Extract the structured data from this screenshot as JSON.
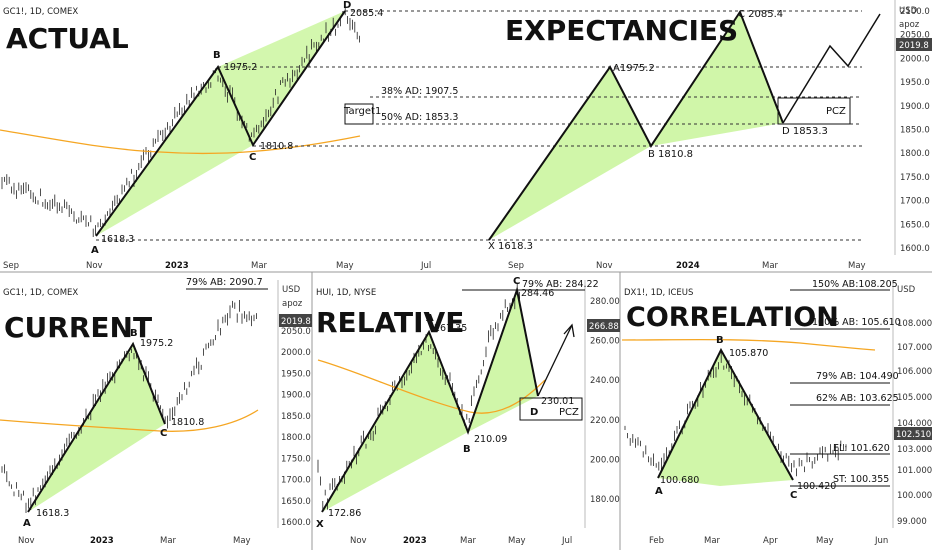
{
  "panels": {
    "top": {
      "symbol": "GC1!, 1D, COMEX",
      "title_left": "ACTUAL",
      "title_right": "EXPECTANCIES",
      "currency": "USD",
      "user": "apoz",
      "price_tag": "2019.8",
      "points": {
        "A": "A",
        "B": "B",
        "C": "C",
        "D": "D",
        "A_val": "1618.3",
        "B_val": "1975.2",
        "C_val": "1810.8",
        "D_val": "2085.4"
      },
      "expect_points": {
        "X": "X 1618.3",
        "A": "A1975.2",
        "B": "B 1810.8",
        "C": "C 2085.4",
        "D": "D 1853.3"
      },
      "levels": {
        "ad38": "38% AD: 1907.5",
        "ad50": "50% AD: 1853.3",
        "target": "Target1",
        "pcz": "PCZ"
      },
      "x_ticks": [
        "Sep",
        "Nov",
        "2023",
        "Mar",
        "May",
        "Jul",
        "Sep",
        "Nov",
        "2024",
        "Mar",
        "May"
      ],
      "y_ticks": [
        "2100.0",
        "2050.0",
        "2000.0",
        "1950.0",
        "1900.0",
        "1850.0",
        "1800.0",
        "1750.0",
        "1700.0",
        "1650.0",
        "1600.0"
      ]
    },
    "bottom_left": {
      "symbol": "GC1!, 1D, COMEX",
      "title": "CURRENT",
      "currency": "USD",
      "user": "apoz",
      "price_tag": "2019.8",
      "top_label": "79% AB: 2090.7",
      "points": {
        "A": "A",
        "B": "B",
        "C": "C",
        "A_val": "1618.3",
        "B_val": "1975.2",
        "C_val": "1810.8"
      },
      "x_ticks": [
        "Nov",
        "2023",
        "Mar",
        "May"
      ],
      "y_ticks": [
        "2050.0",
        "2000.0",
        "1950.0",
        "1900.0",
        "1850.0",
        "1800.0",
        "1750.0",
        "1700.0",
        "1650.0",
        "1600.0"
      ]
    },
    "bottom_mid": {
      "symbol": "HUI, 1D, NYSE",
      "title": "RELATIVE",
      "price_tag": "266.88",
      "top_label": "79% AB: 284.22",
      "points": {
        "X": "X",
        "A": "A",
        "B": "B",
        "C": "C",
        "D": "D",
        "X_val": "172.86",
        "A_val": "267.35",
        "B_val": "210.09",
        "C_val": "284.46",
        "D_val": "230.01"
      },
      "pcz": "PCZ",
      "x_ticks": [
        "Nov",
        "2023",
        "Mar",
        "May",
        "Jul"
      ],
      "y_ticks": [
        "280.00",
        "260.00",
        "240.00",
        "220.00",
        "200.00",
        "180.00"
      ]
    },
    "bottom_right": {
      "symbol": "DX1!, 1D, ICEUS",
      "title": "CORRELATION",
      "currency": "USD",
      "price_tag": "102.510",
      "points": {
        "A": "A",
        "B": "B",
        "C": "C",
        "A_val": "100.680",
        "B_val": "105.870",
        "C_val": "100.420"
      },
      "levels": {
        "ab150": "150% AB:108.205",
        "ab100": "100% AB: 105.610",
        "ab79": "79% AB: 104.490",
        "ab62": "62% AB: 103.625",
        "el": "EL: 101.620",
        "st": "ST: 100.355"
      },
      "x_ticks": [
        "Feb",
        "Mar",
        "Apr",
        "May",
        "Jun"
      ],
      "y_ticks": [
        "108.000",
        "107.000",
        "106.000",
        "105.000",
        "104.000",
        "103.000",
        "101.000",
        "100.000",
        "99.000"
      ]
    }
  },
  "colors": {
    "pattern_fill": "#c8f59a",
    "ma_line": "#f5a623",
    "price_tag_bg": "#444444",
    "grid": "#e6e6e6"
  },
  "chart_data": [
    {
      "type": "line",
      "title": "ACTUAL",
      "symbol": "GC1!, 1D, COMEX",
      "pattern": [
        {
          "label": "A",
          "value": 1618.3
        },
        {
          "label": "B",
          "value": 1975.2
        },
        {
          "label": "C",
          "value": 1810.8
        },
        {
          "label": "D",
          "value": 2085.4
        }
      ],
      "ylim": [
        1600,
        2100
      ]
    },
    {
      "type": "line",
      "title": "EXPECTANCIES",
      "pattern": [
        {
          "label": "X",
          "value": 1618.3
        },
        {
          "label": "A",
          "value": 1975.2
        },
        {
          "label": "B",
          "value": 1810.8
        },
        {
          "label": "C",
          "value": 2085.4
        },
        {
          "label": "D",
          "value": 1853.3
        }
      ],
      "levels": [
        {
          "label": "38% AD",
          "value": 1907.5
        },
        {
          "label": "50% AD",
          "value": 1853.3
        }
      ]
    },
    {
      "type": "line",
      "title": "CURRENT",
      "symbol": "GC1!, 1D, COMEX",
      "pattern": [
        {
          "label": "A",
          "value": 1618.3
        },
        {
          "label": "B",
          "value": 1975.2
        },
        {
          "label": "C",
          "value": 1810.8
        }
      ],
      "levels": [
        {
          "label": "79% AB",
          "value": 2090.7
        }
      ],
      "ylim": [
        1600,
        2050
      ]
    },
    {
      "type": "line",
      "title": "RELATIVE",
      "symbol": "HUI, 1D, NYSE",
      "pattern": [
        {
          "label": "X",
          "value": 172.86
        },
        {
          "label": "A",
          "value": 267.35
        },
        {
          "label": "B",
          "value": 210.09
        },
        {
          "label": "C",
          "value": 284.46
        },
        {
          "label": "D",
          "value": 230.01
        }
      ],
      "levels": [
        {
          "label": "79% AB",
          "value": 284.22
        }
      ],
      "ylim": [
        180,
        280
      ]
    },
    {
      "type": "line",
      "title": "CORRELATION",
      "symbol": "DX1!, 1D, ICEUS",
      "pattern": [
        {
          "label": "A",
          "value": 100.68
        },
        {
          "label": "B",
          "value": 105.87
        },
        {
          "label": "C",
          "value": 100.42
        }
      ],
      "levels": [
        {
          "label": "150% AB",
          "value": 108.205
        },
        {
          "label": "100% AB",
          "value": 105.61
        },
        {
          "label": "79% AB",
          "value": 104.49
        },
        {
          "label": "62% AB",
          "value": 103.625
        },
        {
          "label": "EL",
          "value": 101.62
        },
        {
          "label": "ST",
          "value": 100.355
        }
      ],
      "ylim": [
        99,
        108
      ]
    }
  ]
}
